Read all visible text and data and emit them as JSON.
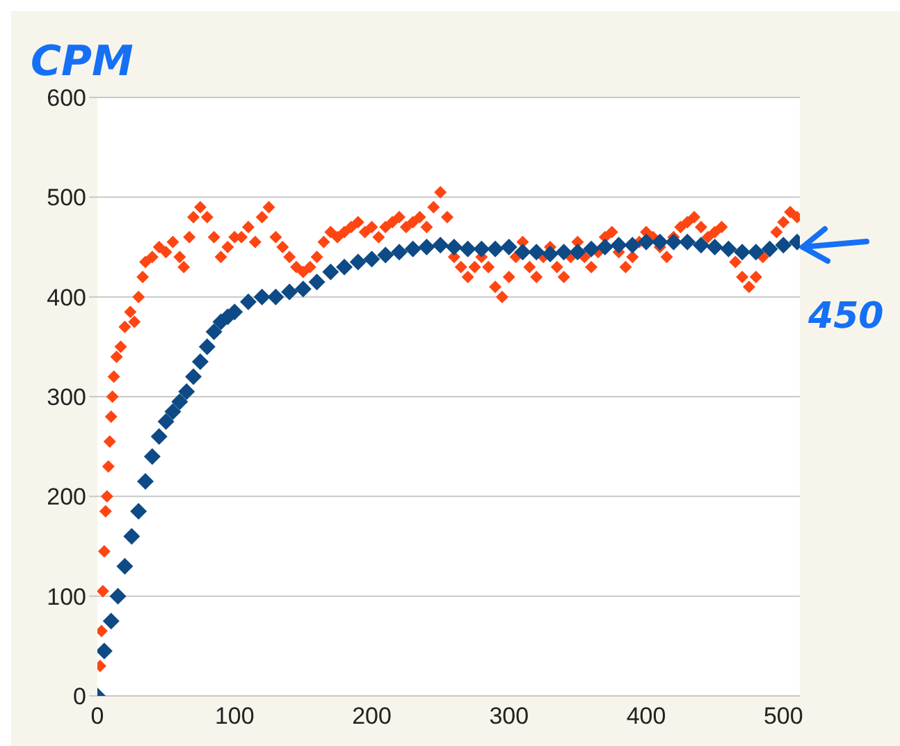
{
  "chart_data": {
    "type": "scatter",
    "ylabel": "CPM",
    "xlim": [
      0,
      512
    ],
    "ylim": [
      0,
      600
    ],
    "xticks": [
      0,
      100,
      200,
      300,
      400,
      500
    ],
    "yticks": [
      0,
      100,
      200,
      300,
      400,
      500,
      600
    ],
    "grid": "y",
    "legend": false,
    "marker": "diamond",
    "annotations": [
      {
        "text": "450",
        "x": 512,
        "y": 450
      }
    ],
    "series": [
      {
        "color": "#fe4512",
        "x": [
          2,
          3,
          4,
          5,
          6,
          7,
          8,
          9,
          10,
          11,
          12,
          14,
          17,
          20,
          24,
          27,
          30,
          33,
          35,
          40,
          45,
          50,
          55,
          60,
          63,
          67,
          70,
          75,
          80,
          85,
          90,
          95,
          100,
          105,
          110,
          115,
          120,
          125,
          130,
          135,
          140,
          145,
          150,
          155,
          160,
          165,
          170,
          175,
          180,
          185,
          190,
          195,
          200,
          205,
          210,
          215,
          220,
          225,
          230,
          235,
          240,
          245,
          250,
          255,
          260,
          265,
          270,
          275,
          280,
          285,
          290,
          295,
          300,
          305,
          310,
          315,
          320,
          325,
          330,
          335,
          340,
          345,
          350,
          355,
          360,
          365,
          370,
          375,
          380,
          385,
          390,
          395,
          400,
          405,
          410,
          415,
          420,
          425,
          430,
          435,
          440,
          445,
          450,
          455,
          460,
          465,
          470,
          475,
          480,
          485,
          490,
          495,
          500,
          505,
          510
        ],
        "values": [
          30,
          65,
          105,
          145,
          185,
          200,
          230,
          255,
          280,
          300,
          320,
          340,
          350,
          370,
          385,
          375,
          400,
          420,
          435,
          440,
          450,
          445,
          455,
          440,
          430,
          460,
          480,
          490,
          480,
          460,
          440,
          450,
          460,
          460,
          470,
          455,
          480,
          490,
          460,
          450,
          440,
          430,
          425,
          430,
          440,
          455,
          465,
          460,
          465,
          470,
          475,
          465,
          470,
          460,
          470,
          475,
          480,
          470,
          475,
          480,
          470,
          490,
          505,
          480,
          440,
          430,
          420,
          430,
          440,
          430,
          410,
          400,
          420,
          440,
          455,
          430,
          420,
          440,
          450,
          430,
          420,
          440,
          455,
          440,
          430,
          445,
          460,
          465,
          445,
          430,
          440,
          455,
          465,
          460,
          450,
          440,
          460,
          470,
          475,
          480,
          470,
          460,
          465,
          470,
          null,
          435,
          420,
          410,
          420,
          440,
          null,
          465,
          475,
          485,
          480
        ]
      },
      {
        "color": "#0e4a85",
        "x": [
          0,
          5,
          10,
          15,
          20,
          25,
          30,
          35,
          40,
          45,
          50,
          55,
          60,
          65,
          70,
          75,
          80,
          85,
          90,
          95,
          100,
          110,
          120,
          130,
          140,
          150,
          160,
          170,
          180,
          190,
          200,
          210,
          220,
          230,
          240,
          250,
          260,
          270,
          280,
          290,
          300,
          310,
          320,
          330,
          340,
          350,
          360,
          370,
          380,
          390,
          400,
          410,
          420,
          430,
          440,
          450,
          460,
          470,
          480,
          490,
          500,
          510
        ],
        "values": [
          0,
          45,
          75,
          100,
          130,
          160,
          185,
          215,
          240,
          260,
          275,
          285,
          295,
          305,
          320,
          335,
          350,
          365,
          375,
          380,
          385,
          395,
          400,
          400,
          405,
          408,
          415,
          425,
          430,
          435,
          438,
          442,
          445,
          448,
          450,
          452,
          450,
          448,
          448,
          448,
          450,
          445,
          445,
          443,
          445,
          445,
          448,
          450,
          452,
          452,
          455,
          455,
          455,
          455,
          452,
          450,
          448,
          445,
          445,
          448,
          452,
          455
        ]
      }
    ]
  }
}
